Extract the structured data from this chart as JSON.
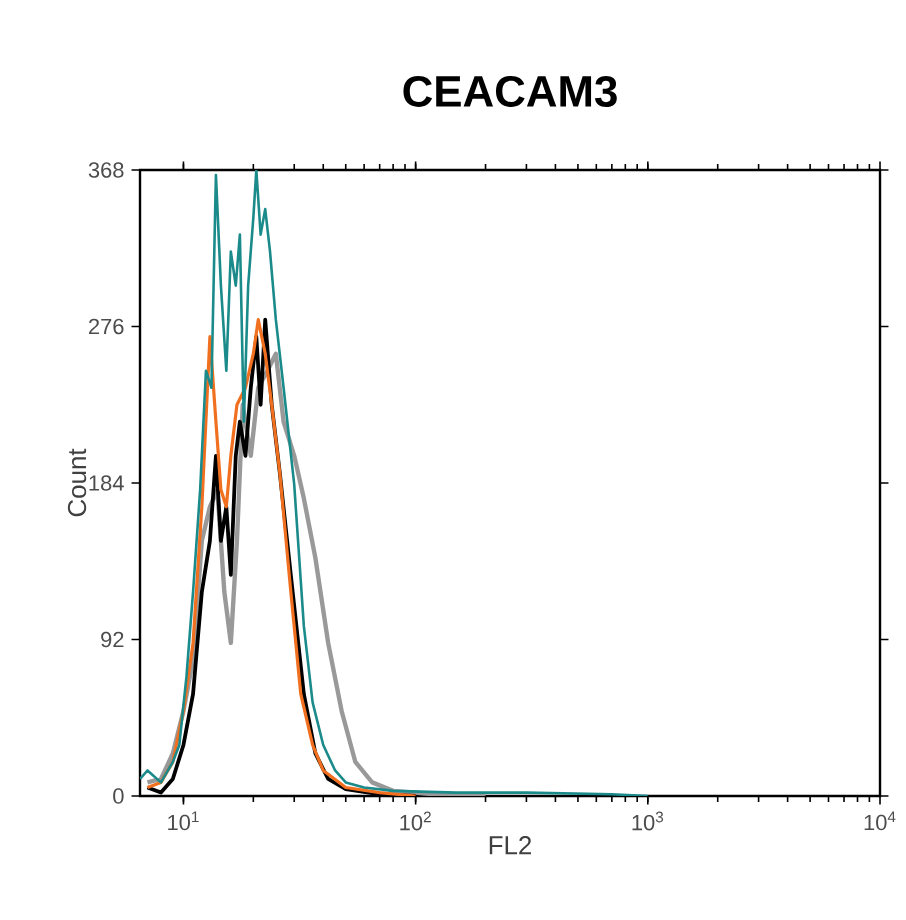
{
  "chart_data": {
    "type": "line",
    "title": "**CEACAM3**",
    "xlabel": "FL2",
    "ylabel": "Count",
    "log": "x",
    "line_style": "solid",
    "xlim": [
      6.5,
      10000
    ],
    "ylim": [
      0,
      368
    ],
    "xticks": [
      {
        "value": 10,
        "label": "10$^{1}$"
      },
      {
        "value": 100,
        "label": "10$^{2}$"
      },
      {
        "value": 1000,
        "label": "10$^{3}$"
      },
      {
        "value": 10000,
        "label": "10$^{4}$"
      }
    ],
    "yticks": [
      0,
      92,
      184,
      276,
      368
    ],
    "series": [
      {
        "color": "#999999",
        "x": [
          7,
          8,
          9,
          10,
          11,
          12,
          13,
          14,
          15,
          16,
          17,
          18,
          19.5,
          21,
          23,
          25,
          27,
          30,
          33,
          37,
          42,
          48,
          55,
          65,
          80,
          120,
          200
        ],
        "values": [
          8,
          10,
          25,
          50,
          80,
          150,
          170,
          180,
          120,
          90,
          150,
          230,
          200,
          240,
          250,
          260,
          220,
          200,
          175,
          140,
          90,
          50,
          20,
          8,
          3,
          1,
          0
        ]
      },
      {
        "color": "#000000",
        "x": [
          7,
          8,
          9,
          10,
          11,
          12,
          13,
          13.8,
          14.5,
          15.3,
          16,
          16.8,
          17.5,
          18.5,
          19.5,
          20.6,
          21.5,
          22.5,
          24,
          26,
          29,
          33,
          37,
          42,
          50,
          70,
          100
        ],
        "values": [
          5,
          2,
          10,
          30,
          60,
          120,
          150,
          200,
          150,
          170,
          130,
          200,
          220,
          200,
          240,
          270,
          230,
          280,
          230,
          190,
          130,
          60,
          25,
          10,
          4,
          1,
          0
        ]
      },
      {
        "color": "#f07020",
        "x": [
          7,
          8,
          9,
          10,
          11,
          12,
          13,
          13.8,
          14.5,
          15.3,
          16,
          17,
          18.5,
          20,
          21,
          22.5,
          24,
          26,
          29,
          32,
          36,
          40,
          50,
          70,
          100
        ],
        "values": [
          5,
          8,
          20,
          50,
          90,
          170,
          270,
          220,
          180,
          170,
          200,
          230,
          240,
          260,
          280,
          260,
          230,
          190,
          120,
          60,
          30,
          15,
          5,
          2,
          0
        ]
      },
      {
        "color": "#1a8a8a",
        "x": [
          6.5,
          7,
          8,
          9,
          9.6,
          10.3,
          11,
          11.8,
          12.5,
          13.2,
          13.8,
          14.5,
          15.3,
          16,
          16.8,
          17.5,
          18.2,
          19,
          20,
          20.6,
          21.5,
          22.5,
          23.6,
          25,
          27,
          30,
          33,
          36,
          40,
          45,
          50,
          60,
          80,
          150,
          300,
          700,
          1000
        ],
        "values": [
          10,
          15,
          8,
          20,
          30,
          70,
          120,
          180,
          250,
          240,
          365,
          300,
          250,
          320,
          300,
          330,
          220,
          300,
          340,
          368,
          330,
          345,
          320,
          280,
          240,
          183,
          100,
          55,
          30,
          15,
          8,
          5,
          3,
          2,
          2,
          1,
          0
        ]
      }
    ]
  }
}
